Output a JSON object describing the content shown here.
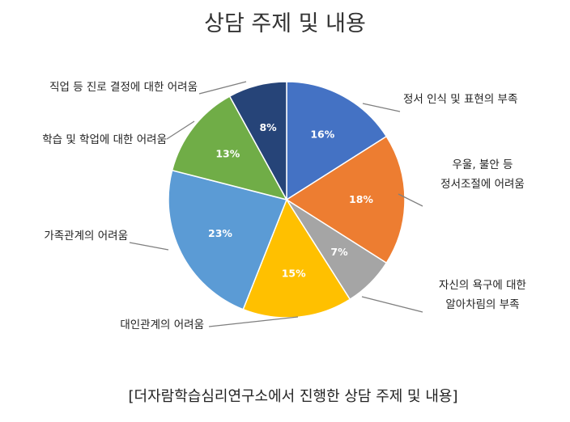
{
  "chart_data": {
    "type": "pie",
    "title": "상담 주제 및 내용",
    "caption": "[더자람학습심리연구소에서 진행한 상담 주제 및 내용]",
    "slices": [
      {
        "label_lines": [
          "정서 인식 및 표현의 부족"
        ],
        "value": 16,
        "value_label": "16%",
        "color": "#4472C4"
      },
      {
        "label_lines": [
          "우울, 불안 등",
          "정서조절에 어려움"
        ],
        "value": 18,
        "value_label": "18%",
        "color": "#ED7D31"
      },
      {
        "label_lines": [
          "자신의 욕구에 대한",
          "알아차림의 부족"
        ],
        "value": 7,
        "value_label": "7%",
        "color": "#A5A5A5"
      },
      {
        "label_lines": [
          "대인관계의 어려움"
        ],
        "value": 15,
        "value_label": "15%",
        "color": "#FFC000"
      },
      {
        "label_lines": [
          "가족관계의 어려움"
        ],
        "value": 23,
        "value_label": "23%",
        "color": "#5B9BD5"
      },
      {
        "label_lines": [
          "학습 및 학업에 대한 어려움"
        ],
        "value": 13,
        "value_label": "13%",
        "color": "#70AD47"
      },
      {
        "label_lines": [
          "직업 등 진로 결정에 대한 어려움"
        ],
        "value": 8,
        "value_label": "8%",
        "color": "#264478"
      }
    ]
  }
}
